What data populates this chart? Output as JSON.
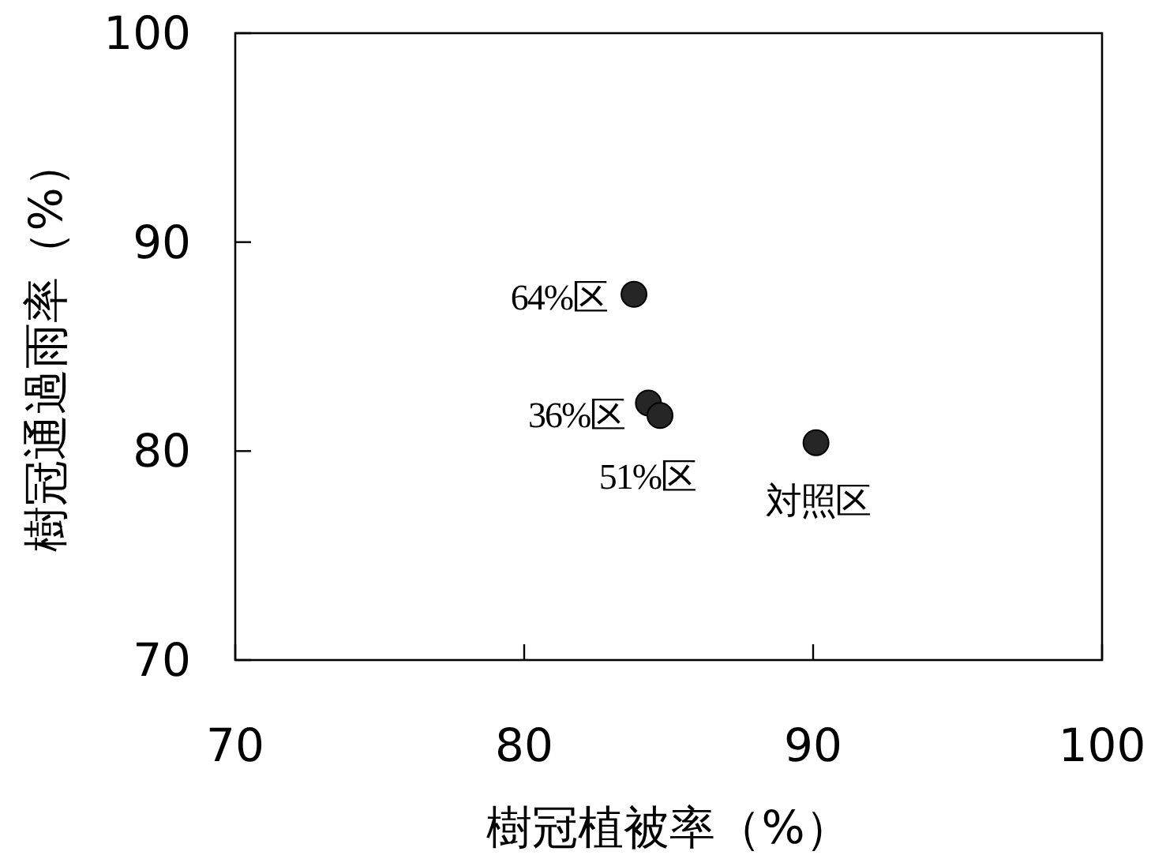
{
  "chart_data": {
    "type": "scatter",
    "xlabel": "樹冠植被率（%）",
    "ylabel": "樹冠通過雨率（%）",
    "x": [
      83.8,
      84.3,
      84.7,
      90.1
    ],
    "values": [
      87.5,
      82.3,
      81.7,
      80.4
    ],
    "color": "#262626",
    "marker": "circle",
    "xlim": [
      70,
      100
    ],
    "ylim": [
      70,
      100
    ],
    "xticks": [
      70,
      80,
      90,
      100
    ],
    "yticks": [
      70,
      80,
      90,
      100
    ],
    "annotations": [
      {
        "text": "64%区",
        "x": 83.8,
        "y": 87.5
      },
      {
        "text": "36%区",
        "x": 84.3,
        "y": 82.3
      },
      {
        "text": "51%区",
        "x": 84.7,
        "y": 81.7
      },
      {
        "text": "対照区",
        "x": 90.1,
        "y": 80.4
      }
    ]
  }
}
